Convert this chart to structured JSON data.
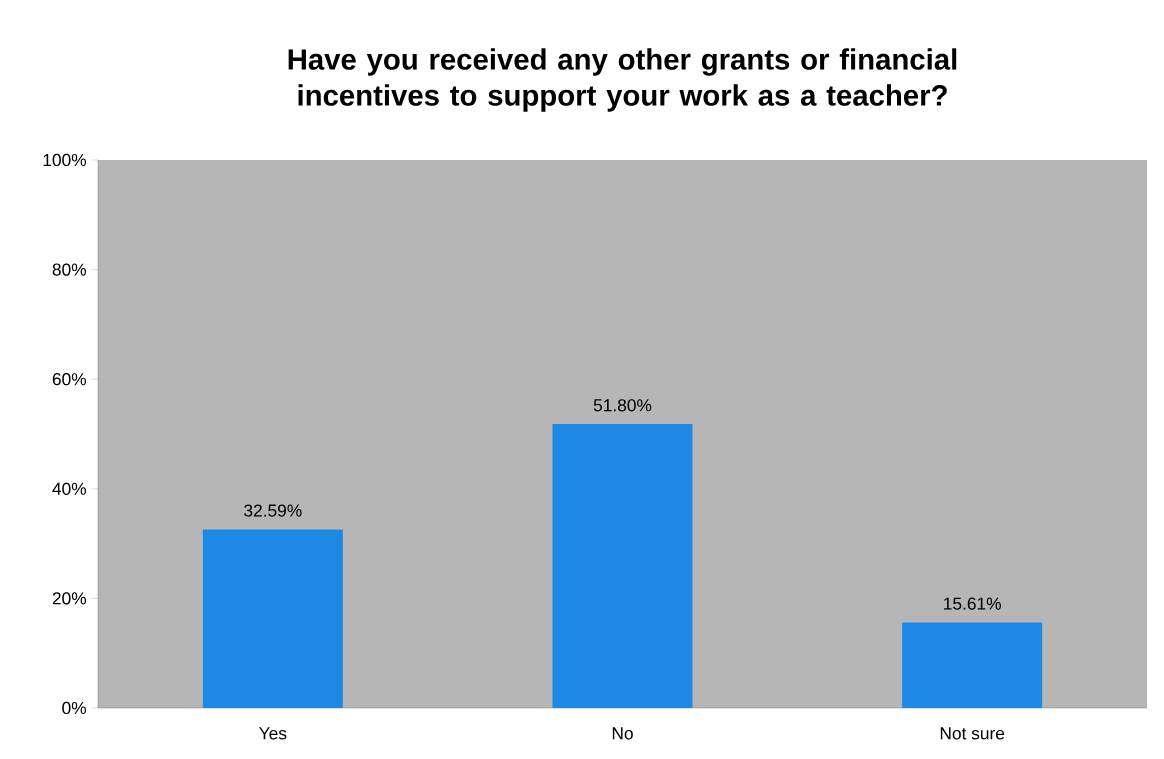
{
  "chart_data": {
    "type": "bar",
    "title": "Have you received any other grants or financial incentives to support your work as a teacher?",
    "categories": [
      "Yes",
      "No",
      "Not sure"
    ],
    "values": [
      32.59,
      51.8,
      15.61
    ],
    "value_labels": [
      "32.59%",
      "51.80%",
      "15.61%"
    ],
    "color": "#1e88e5",
    "ylim": [
      0,
      100
    ],
    "yticks": [
      {
        "value": 0,
        "label": "0%"
      },
      {
        "value": 20,
        "label": "20%"
      },
      {
        "value": 40,
        "label": "40%"
      },
      {
        "value": 60,
        "label": "60%"
      },
      {
        "value": 80,
        "label": "80%"
      },
      {
        "value": 100,
        "label": "100%"
      }
    ],
    "grid": false
  }
}
